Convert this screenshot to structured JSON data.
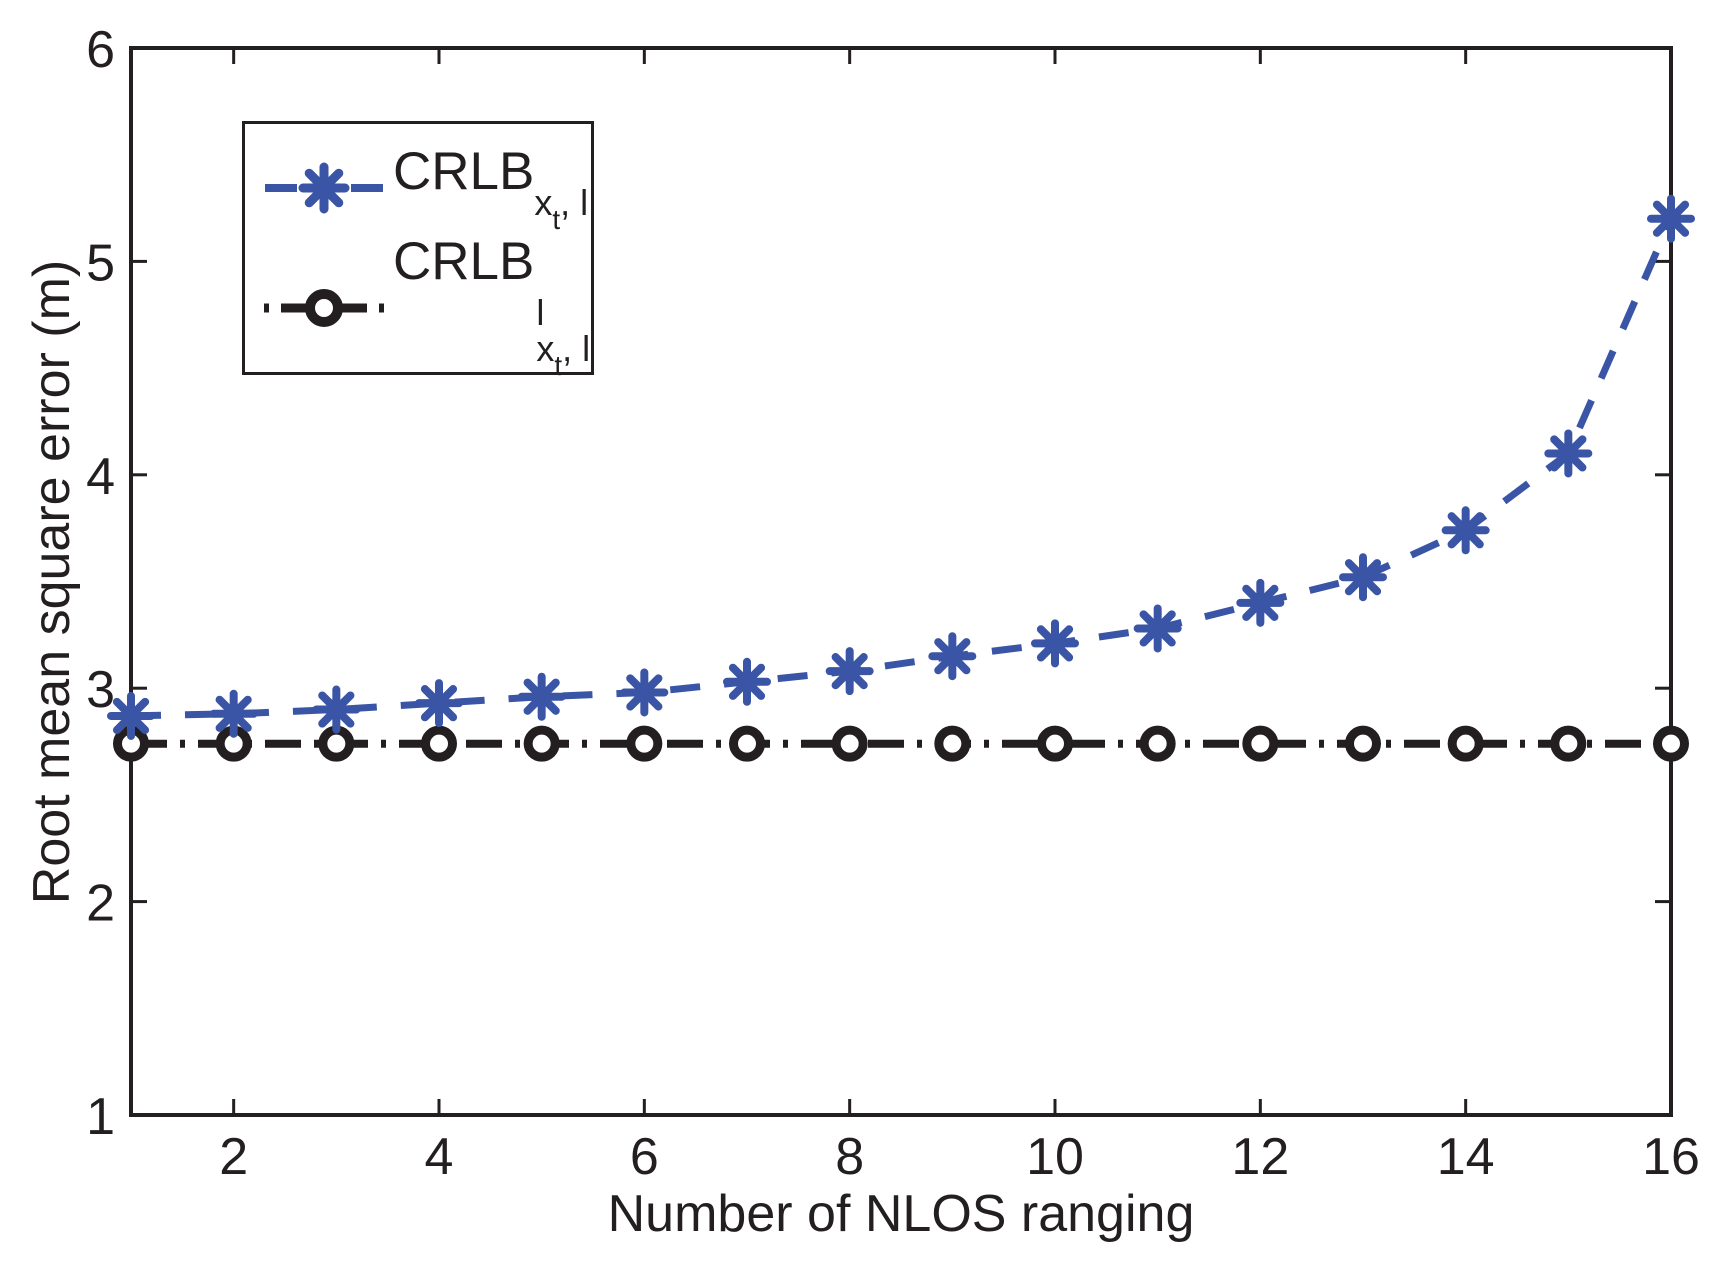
{
  "chart_data": {
    "type": "line",
    "title": "",
    "xlabel": "Number of NLOS ranging",
    "ylabel": "Root mean square error (m)",
    "xlim": [
      1,
      16
    ],
    "ylim": [
      1,
      6
    ],
    "xticks": [
      2,
      4,
      6,
      8,
      10,
      12,
      14,
      16
    ],
    "yticks": [
      1,
      2,
      3,
      4,
      5,
      6
    ],
    "grid": false,
    "frame": "box-with-mirrored-inward-ticks",
    "legend_position": "upper-left",
    "x": [
      1,
      2,
      3,
      4,
      5,
      6,
      7,
      8,
      9,
      10,
      11,
      12,
      13,
      14,
      15,
      16
    ],
    "series": [
      {
        "name": "CRLB_{x_t, l}",
        "color": "#3a55a6",
        "linestyle": "dashed",
        "marker": "asterisk",
        "values": [
          2.87,
          2.88,
          2.9,
          2.93,
          2.96,
          2.98,
          3.03,
          3.08,
          3.15,
          3.21,
          3.28,
          3.4,
          3.52,
          3.74,
          4.1,
          5.2
        ]
      },
      {
        "name": "CRLB^l_{x_t, l}",
        "color": "#231f20",
        "linestyle": "dashdot",
        "marker": "open-circle",
        "values": [
          2.74,
          2.74,
          2.74,
          2.74,
          2.74,
          2.74,
          2.74,
          2.74,
          2.74,
          2.74,
          2.74,
          2.74,
          2.74,
          2.74,
          2.74,
          2.74
        ]
      }
    ]
  },
  "axes": {
    "xlabel": "Number of NLOS ranging",
    "ylabel": "Root mean square error (m)",
    "text_color": "#231f20"
  },
  "legend": {
    "items": [
      {
        "base": "CRLB",
        "sub_x": "x",
        "sub_t": "t",
        "sub_rest": ", l"
      },
      {
        "base": "CRLB",
        "sup": "l",
        "sub_x": "x",
        "sub_t": "t",
        "sub_rest": ", l"
      }
    ]
  }
}
